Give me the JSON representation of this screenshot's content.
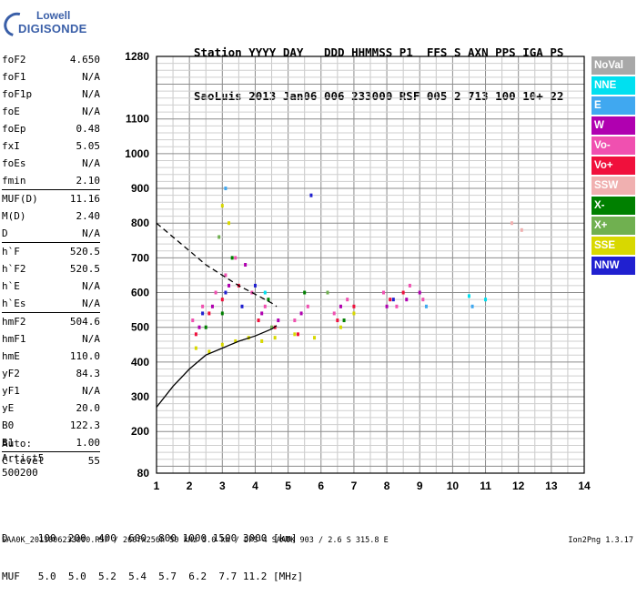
{
  "logo": {
    "line1": "Lowell",
    "line2": "DIGISONDE"
  },
  "header": {
    "line1": "Station YYYY DAY   DDD HHMMSS P1  FFS S AXN PPS IGA PS",
    "line2": "SaoLuis 2013 Jan06 006 233000 RSF 005 2 713 100 10+ 22"
  },
  "params": {
    "group1": [
      {
        "k": "foF2",
        "v": "4.650"
      },
      {
        "k": "foF1",
        "v": "N/A"
      },
      {
        "k": "foF1p",
        "v": "N/A"
      },
      {
        "k": "foE",
        "v": "N/A"
      },
      {
        "k": "foEp",
        "v": "0.48"
      },
      {
        "k": "fxI",
        "v": "5.05"
      },
      {
        "k": "foEs",
        "v": "N/A"
      },
      {
        "k": "fmin",
        "v": "2.10"
      }
    ],
    "group2": [
      {
        "k": "MUF(D)",
        "v": "11.16"
      },
      {
        "k": "M(D)",
        "v": "2.40"
      },
      {
        "k": "D",
        "v": "N/A"
      }
    ],
    "group3": [
      {
        "k": "h`F",
        "v": "520.5"
      },
      {
        "k": "h`F2",
        "v": "520.5"
      },
      {
        "k": "h`E",
        "v": "N/A"
      },
      {
        "k": "h`Es",
        "v": "N/A"
      }
    ],
    "group4": [
      {
        "k": "hmF2",
        "v": "504.6"
      },
      {
        "k": "hmF1",
        "v": "N/A"
      },
      {
        "k": "hmE",
        "v": "110.0"
      },
      {
        "k": "yF2",
        "v": "84.3"
      },
      {
        "k": "yF1",
        "v": "N/A"
      },
      {
        "k": "yE",
        "v": "20.0"
      },
      {
        "k": "B0",
        "v": "122.3"
      },
      {
        "k": "B1",
        "v": "1.00"
      }
    ],
    "group5": [
      {
        "k": "C-level",
        "v": "55"
      }
    ]
  },
  "auto": {
    "l1": "Auto:",
    "l2": "Artist5",
    "l3": "500200"
  },
  "legend": [
    {
      "label": "NoVal",
      "color": "#a8a8a8"
    },
    {
      "label": "NNE",
      "color": "#00e0f0"
    },
    {
      "label": "E",
      "color": "#40a8f0"
    },
    {
      "label": "W",
      "color": "#b000b0"
    },
    {
      "label": "Vo-",
      "color": "#f050b0"
    },
    {
      "label": "Vo+",
      "color": "#f0103c"
    },
    {
      "label": "SSW",
      "color": "#f0b0b0"
    },
    {
      "label": "X-",
      "color": "#008000"
    },
    {
      "label": "X+",
      "color": "#70b050"
    },
    {
      "label": "SSE",
      "color": "#d8d800"
    },
    {
      "label": "NNW",
      "color": "#2020d0"
    }
  ],
  "dmuf": {
    "d_line": "D     100  200  400  600  800 1000 1500 3000 [km]",
    "muf_line": "MUF   5.0  5.0  5.2  5.4  5.7  6.2  7.7 11.2 [MHz]"
  },
  "footer": "SAA0K_2013006233000.RSF / 260fx256h 50 kHz 5.0 km / DPS-4 SAA0K 903 / 2.6 S 315.8 E",
  "version": "Ion2Png 1.3.17",
  "chart_data": {
    "type": "scatter",
    "title": "",
    "xlabel": "",
    "ylabel": "",
    "xlim": [
      1,
      14
    ],
    "ylim": [
      80,
      1280
    ],
    "x_ticks": [
      1,
      2,
      3,
      4,
      5,
      6,
      7,
      8,
      9,
      10,
      11,
      12,
      13,
      14
    ],
    "y_ticks": [
      80,
      200,
      300,
      400,
      500,
      600,
      700,
      800,
      900,
      1000,
      1100,
      1280
    ],
    "series": [
      {
        "name": "Vo-",
        "color": "#f050b0",
        "points": [
          [
            2.1,
            520
          ],
          [
            2.4,
            560
          ],
          [
            2.8,
            600
          ],
          [
            3.1,
            650
          ],
          [
            3.4,
            700
          ],
          [
            3.9,
            600
          ],
          [
            4.3,
            560
          ],
          [
            5.2,
            520
          ],
          [
            5.6,
            560
          ],
          [
            6.4,
            540
          ],
          [
            6.8,
            580
          ],
          [
            7.9,
            600
          ],
          [
            8.3,
            560
          ],
          [
            8.7,
            620
          ],
          [
            9.1,
            580
          ]
        ]
      },
      {
        "name": "Vo+",
        "color": "#f0103c",
        "points": [
          [
            2.2,
            480
          ],
          [
            2.6,
            540
          ],
          [
            3.0,
            580
          ],
          [
            3.5,
            620
          ],
          [
            4.1,
            520
          ],
          [
            4.6,
            500
          ],
          [
            5.3,
            480
          ],
          [
            6.5,
            520
          ],
          [
            7.0,
            560
          ],
          [
            8.1,
            580
          ],
          [
            8.5,
            600
          ]
        ]
      },
      {
        "name": "W",
        "color": "#b000b0",
        "points": [
          [
            2.3,
            500
          ],
          [
            2.7,
            560
          ],
          [
            3.2,
            620
          ],
          [
            3.7,
            680
          ],
          [
            4.2,
            540
          ],
          [
            4.7,
            520
          ],
          [
            5.4,
            540
          ],
          [
            6.6,
            560
          ],
          [
            8.0,
            560
          ],
          [
            8.6,
            580
          ],
          [
            9.0,
            600
          ]
        ]
      },
      {
        "name": "X-",
        "color": "#008000",
        "points": [
          [
            2.5,
            500
          ],
          [
            3.0,
            540
          ],
          [
            3.3,
            700
          ],
          [
            4.4,
            580
          ],
          [
            5.5,
            600
          ],
          [
            6.7,
            520
          ]
        ]
      },
      {
        "name": "SSE",
        "color": "#d8d800",
        "points": [
          [
            2.2,
            440
          ],
          [
            2.6,
            430
          ],
          [
            3.0,
            450
          ],
          [
            3.4,
            460
          ],
          [
            3.8,
            470
          ],
          [
            4.2,
            460
          ],
          [
            4.6,
            470
          ],
          [
            5.2,
            480
          ],
          [
            5.8,
            470
          ],
          [
            6.6,
            500
          ],
          [
            7.0,
            540
          ],
          [
            3.0,
            850
          ],
          [
            3.2,
            800
          ]
        ]
      },
      {
        "name": "NNW",
        "color": "#2020d0",
        "points": [
          [
            2.4,
            540
          ],
          [
            3.1,
            600
          ],
          [
            3.6,
            560
          ],
          [
            4.0,
            620
          ],
          [
            8.2,
            580
          ],
          [
            5.7,
            880
          ]
        ]
      },
      {
        "name": "NNE",
        "color": "#00e0f0",
        "points": [
          [
            10.5,
            590
          ],
          [
            11.0,
            580
          ],
          [
            4.3,
            600
          ]
        ]
      },
      {
        "name": "E",
        "color": "#40a8f0",
        "points": [
          [
            3.1,
            900
          ],
          [
            9.2,
            560
          ],
          [
            10.6,
            560
          ]
        ]
      },
      {
        "name": "SSW",
        "color": "#f0b0b0",
        "points": [
          [
            11.8,
            800
          ],
          [
            12.1,
            780
          ]
        ]
      },
      {
        "name": "X+",
        "color": "#70b050",
        "points": [
          [
            2.9,
            760
          ],
          [
            4.5,
            500
          ],
          [
            6.2,
            600
          ]
        ]
      }
    ],
    "curves": [
      {
        "name": "profile-solid",
        "style": "solid",
        "points": [
          [
            1.0,
            270
          ],
          [
            1.5,
            330
          ],
          [
            2.0,
            380
          ],
          [
            2.5,
            420
          ],
          [
            3.0,
            440
          ],
          [
            3.5,
            460
          ],
          [
            4.0,
            475
          ],
          [
            4.5,
            495
          ],
          [
            4.65,
            505
          ]
        ]
      },
      {
        "name": "profile-dashed",
        "style": "dashed",
        "points": [
          [
            1.0,
            800
          ],
          [
            1.5,
            760
          ],
          [
            2.0,
            720
          ],
          [
            2.5,
            680
          ],
          [
            3.0,
            650
          ],
          [
            3.5,
            620
          ],
          [
            4.0,
            595
          ],
          [
            4.5,
            570
          ],
          [
            4.65,
            560
          ]
        ]
      }
    ]
  }
}
